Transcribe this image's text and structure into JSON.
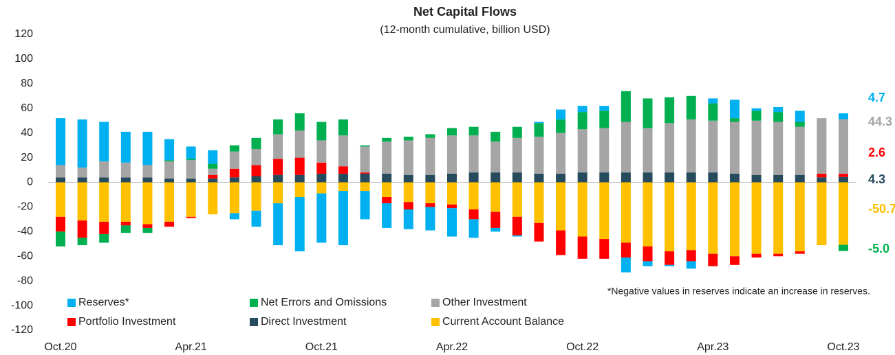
{
  "chart_data": {
    "type": "stacked_bar",
    "title": "Net Capital Flows",
    "subtitle": "(12-month cumulative, billion USD)",
    "annotation": "*Negative values in reserves indicate an increase in reserves.",
    "categories": [
      "Oct.20",
      null,
      null,
      null,
      null,
      null,
      "Apr.21",
      null,
      null,
      null,
      null,
      null,
      "Oct.21",
      null,
      null,
      null,
      null,
      null,
      "Apr.22",
      null,
      null,
      null,
      null,
      null,
      "Oct.22",
      null,
      null,
      null,
      null,
      null,
      "Apr.23",
      null,
      null,
      null,
      null,
      null,
      "Oct.23"
    ],
    "ylim": [
      -120,
      120
    ],
    "yticks": [
      -120,
      -100,
      -80,
      -60,
      -40,
      -20,
      0,
      20,
      40,
      60,
      80,
      100,
      120
    ],
    "grid": false,
    "series": [
      {
        "name": "Reserves*",
        "color": "#00b0f0",
        "end_label": "4.7",
        "values": [
          38,
          39,
          32,
          25,
          27,
          17,
          10,
          11,
          -5,
          -13,
          -34,
          -44,
          -40,
          -44,
          -23,
          -20,
          -16,
          -19,
          -23,
          -15,
          -3,
          -1,
          1,
          8,
          5,
          4,
          -12,
          -4,
          -1,
          -6,
          4,
          15,
          2,
          4,
          9,
          0,
          4.7
        ]
      },
      {
        "name": "Net Errors and Omissions",
        "color": "#00b050",
        "end_label": "-5.0",
        "values": [
          -12,
          -6,
          -7,
          -6,
          -4,
          1,
          1,
          4,
          5,
          9,
          12,
          14,
          15,
          13,
          1,
          3,
          3,
          3,
          6,
          7,
          8,
          9,
          11,
          11,
          14,
          14,
          25,
          24,
          21,
          19,
          14,
          3,
          8,
          8,
          4,
          0,
          -5.0
        ]
      },
      {
        "name": "Other Investment",
        "color": "#a5a5a5",
        "end_label": "44.3",
        "values": [
          10,
          8,
          13,
          12,
          10,
          14,
          15,
          5,
          14,
          13,
          20,
          22,
          18,
          25,
          21,
          26,
          28,
          30,
          31,
          30,
          25,
          28,
          30,
          33,
          35,
          36,
          41,
          36,
          40,
          43,
          42,
          42,
          44,
          43,
          39,
          45,
          44.3
        ]
      },
      {
        "name": "Portfolio Investment",
        "color": "#ff0000",
        "end_label": "2.6",
        "values": [
          -12,
          -14,
          -10,
          -3,
          -3,
          -4,
          -1,
          3,
          7,
          9,
          13,
          14,
          9,
          6,
          1,
          -5,
          -6,
          -3,
          -3,
          -8,
          -13,
          -15,
          -15,
          -20,
          -18,
          -16,
          -12,
          -12,
          -11,
          -9,
          -10,
          -7,
          -3,
          -2,
          -2,
          3,
          2.6
        ]
      },
      {
        "name": "Direct Investment",
        "color": "#264b5d",
        "end_label": "4.3",
        "values": [
          4,
          4,
          4,
          4,
          4,
          3,
          3,
          3,
          4,
          5,
          6,
          6,
          7,
          7,
          7,
          7,
          6,
          6,
          7,
          8,
          8,
          8,
          7,
          7,
          8,
          8,
          8,
          8,
          8,
          8,
          8,
          7,
          6,
          6,
          6,
          4,
          4.3
        ]
      },
      {
        "name": "Current Account Balance",
        "color": "#ffc000",
        "end_label": "-50.7",
        "values": [
          -28,
          -31,
          -32,
          -32,
          -34,
          -32,
          -28,
          -26,
          -25,
          -23,
          -17,
          -12,
          -9,
          -7,
          -7,
          -12,
          -16,
          -17,
          -18,
          -22,
          -24,
          -28,
          -33,
          -39,
          -44,
          -46,
          -49,
          -52,
          -56,
          -55,
          -58,
          -60,
          -58,
          -58,
          -56,
          -51,
          -50.7
        ]
      }
    ]
  }
}
